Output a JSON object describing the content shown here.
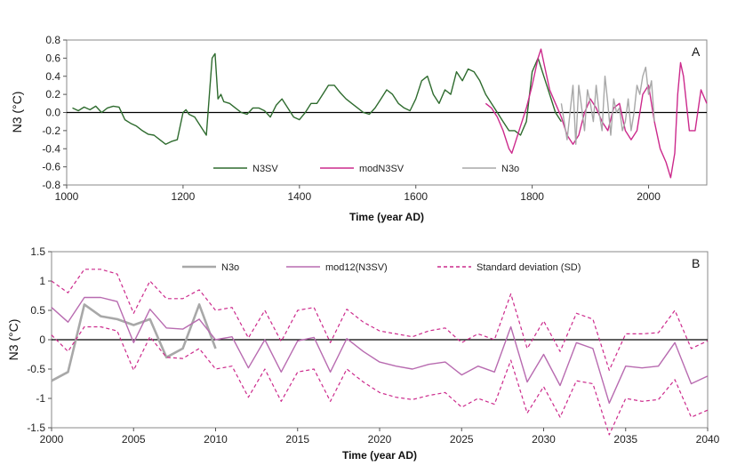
{
  "colors": {
    "n3sv": "#2e6b2e",
    "modn3sv": "#cc2a8c",
    "n3o": "#a8a8a8",
    "mod12": "#b86bb0",
    "sd": "#cc2a8c",
    "axis": "#000000",
    "frame": "#888888"
  },
  "chart_data": [
    {
      "type": "line",
      "panel_label": "A",
      "xlabel": "Time (year AD)",
      "ylabel": "N3 (°C)",
      "xlim": [
        1000,
        2100
      ],
      "ylim": [
        -0.8,
        0.8
      ],
      "xticks": [
        1000,
        1200,
        1400,
        1600,
        1800,
        2000
      ],
      "yticks": [
        -0.8,
        -0.6,
        -0.4,
        -0.2,
        0.0,
        0.2,
        0.4,
        0.6,
        0.8
      ],
      "ytick_labels": [
        "-0.8",
        "-0.6",
        "-0.4",
        "-0.2",
        "0.0",
        "0.2",
        "0.4",
        "0.6",
        "0.8"
      ],
      "zero_line": true,
      "legend_position": "bottom-center",
      "series": [
        {
          "name": "N3SV",
          "style": "solid",
          "x": [
            1010,
            1020,
            1030,
            1040,
            1050,
            1060,
            1070,
            1080,
            1090,
            1100,
            1110,
            1120,
            1130,
            1140,
            1150,
            1160,
            1170,
            1180,
            1190,
            1200,
            1205,
            1210,
            1220,
            1230,
            1240,
            1250,
            1255,
            1260,
            1265,
            1270,
            1280,
            1290,
            1300,
            1310,
            1320,
            1330,
            1340,
            1350,
            1360,
            1370,
            1380,
            1390,
            1400,
            1410,
            1420,
            1430,
            1440,
            1450,
            1460,
            1470,
            1480,
            1490,
            1500,
            1510,
            1520,
            1530,
            1540,
            1550,
            1560,
            1570,
            1580,
            1590,
            1600,
            1610,
            1620,
            1630,
            1640,
            1650,
            1660,
            1670,
            1680,
            1690,
            1700,
            1710,
            1720,
            1730,
            1740,
            1750,
            1760,
            1770,
            1780,
            1790,
            1800,
            1810,
            1820,
            1830,
            1840,
            1850
          ],
          "y": [
            0.05,
            0.02,
            0.06,
            0.03,
            0.07,
            0.0,
            0.05,
            0.07,
            0.06,
            -0.08,
            -0.12,
            -0.15,
            -0.2,
            -0.24,
            -0.25,
            -0.3,
            -0.35,
            -0.32,
            -0.3,
            0.0,
            0.03,
            -0.02,
            -0.05,
            -0.15,
            -0.25,
            0.6,
            0.65,
            0.15,
            0.2,
            0.12,
            0.1,
            0.05,
            0.0,
            -0.02,
            0.05,
            0.05,
            0.02,
            -0.05,
            0.08,
            0.15,
            0.05,
            -0.05,
            -0.08,
            0.0,
            0.1,
            0.1,
            0.2,
            0.3,
            0.3,
            0.22,
            0.15,
            0.1,
            0.05,
            0.0,
            -0.02,
            0.05,
            0.15,
            0.25,
            0.2,
            0.1,
            0.05,
            0.02,
            0.15,
            0.35,
            0.4,
            0.2,
            0.1,
            0.25,
            0.2,
            0.45,
            0.35,
            0.48,
            0.45,
            0.35,
            0.2,
            0.1,
            0.0,
            -0.1,
            -0.2,
            -0.2,
            -0.25,
            -0.1,
            0.45,
            0.6,
            0.4,
            0.2,
            0.0,
            -0.1
          ]
        },
        {
          "name": "modN3SV",
          "style": "solid",
          "x": [
            1720,
            1730,
            1740,
            1750,
            1760,
            1765,
            1770,
            1780,
            1790,
            1800,
            1810,
            1815,
            1820,
            1830,
            1840,
            1850,
            1860,
            1870,
            1880,
            1890,
            1900,
            1910,
            1920,
            1930,
            1940,
            1950,
            1960,
            1970,
            1980,
            1990,
            2000,
            2010,
            2020,
            2030,
            2038,
            2045,
            2050,
            2055,
            2060,
            2070,
            2080,
            2090,
            2100
          ],
          "y": [
            0.1,
            0.05,
            -0.05,
            -0.2,
            -0.4,
            -0.45,
            -0.35,
            -0.15,
            0.05,
            0.3,
            0.6,
            0.7,
            0.55,
            0.25,
            0.1,
            -0.05,
            -0.25,
            -0.35,
            -0.25,
            0.0,
            0.15,
            0.05,
            -0.1,
            -0.2,
            0.05,
            0.1,
            -0.2,
            -0.3,
            -0.2,
            0.2,
            0.3,
            -0.1,
            -0.4,
            -0.55,
            -0.72,
            -0.45,
            0.2,
            0.55,
            0.4,
            -0.2,
            -0.2,
            0.25,
            0.1
          ]
        },
        {
          "name": "N3o",
          "style": "solid",
          "x": [
            1850,
            1855,
            1860,
            1865,
            1870,
            1875,
            1880,
            1885,
            1890,
            1895,
            1900,
            1905,
            1910,
            1915,
            1920,
            1925,
            1930,
            1935,
            1940,
            1945,
            1950,
            1955,
            1960,
            1965,
            1970,
            1975,
            1980,
            1985,
            1990,
            1995,
            2000,
            2005,
            2010
          ],
          "y": [
            0.1,
            -0.1,
            -0.3,
            0.0,
            0.3,
            -0.35,
            0.3,
            0.05,
            -0.2,
            0.25,
            0.1,
            -0.1,
            0.3,
            0.0,
            -0.2,
            0.4,
            0.1,
            -0.25,
            0.15,
            0.0,
            0.05,
            -0.2,
            -0.1,
            0.15,
            -0.2,
            0.0,
            0.3,
            0.2,
            0.4,
            0.5,
            0.2,
            0.35,
            -0.1
          ]
        }
      ]
    },
    {
      "type": "line",
      "panel_label": "B",
      "xlabel": "Time (year AD)",
      "ylabel": "N3 (°C)",
      "xlim": [
        2000,
        2040
      ],
      "ylim": [
        -1.5,
        1.5
      ],
      "xticks": [
        2000,
        2005,
        2010,
        2015,
        2020,
        2025,
        2030,
        2035,
        2040
      ],
      "yticks": [
        -1.5,
        -1,
        -0.5,
        0,
        0.5,
        1,
        1.5
      ],
      "ytick_labels": [
        "-1.5",
        "-1",
        "-0.5",
        "0",
        "0.5",
        "1",
        "1.5"
      ],
      "zero_line": true,
      "legend_position": "top",
      "series": [
        {
          "name": "N3o",
          "style": "solid-thick",
          "x": [
            2000,
            2001,
            2002,
            2003,
            2004,
            2005,
            2006,
            2007,
            2008,
            2009,
            2010
          ],
          "y": [
            -0.7,
            -0.55,
            0.6,
            0.4,
            0.35,
            0.25,
            0.35,
            -0.3,
            -0.15,
            0.6,
            -0.15
          ]
        },
        {
          "name": "mod12(N3SV)",
          "style": "solid",
          "x": [
            2000,
            2001,
            2002,
            2003,
            2004,
            2005,
            2006,
            2007,
            2008,
            2009,
            2010,
            2011,
            2012,
            2013,
            2014,
            2015,
            2016,
            2017,
            2018,
            2019,
            2020,
            2021,
            2022,
            2023,
            2024,
            2025,
            2026,
            2027,
            2028,
            2029,
            2030,
            2031,
            2032,
            2033,
            2034,
            2035,
            2036,
            2037,
            2038,
            2039,
            2040
          ],
          "y": [
            0.55,
            0.3,
            0.72,
            0.72,
            0.65,
            -0.05,
            0.52,
            0.2,
            0.18,
            0.35,
            0.0,
            0.05,
            -0.48,
            0.0,
            -0.55,
            -0.02,
            0.04,
            -0.55,
            0.02,
            -0.2,
            -0.38,
            -0.45,
            -0.5,
            -0.42,
            -0.38,
            -0.6,
            -0.45,
            -0.55,
            0.22,
            -0.72,
            -0.25,
            -0.78,
            -0.05,
            -0.15,
            -1.08,
            -0.45,
            -0.48,
            -0.45,
            -0.05,
            -0.75,
            -0.62
          ]
        },
        {
          "name": "Standard deviation (SD)",
          "style": "dashed",
          "x": [
            2000,
            2001,
            2002,
            2003,
            2004,
            2005,
            2006,
            2007,
            2008,
            2009,
            2010,
            2011,
            2012,
            2013,
            2014,
            2015,
            2016,
            2017,
            2018,
            2019,
            2020,
            2021,
            2022,
            2023,
            2024,
            2025,
            2026,
            2027,
            2028,
            2029,
            2030,
            2031,
            2032,
            2033,
            2034,
            2035,
            2036,
            2037,
            2038,
            2039,
            2040
          ],
          "y": [
            1.0,
            0.8,
            1.2,
            1.2,
            1.12,
            0.45,
            1.0,
            0.7,
            0.7,
            0.85,
            0.5,
            0.55,
            0.03,
            0.5,
            -0.03,
            0.5,
            0.55,
            -0.05,
            0.52,
            0.3,
            0.15,
            0.1,
            0.05,
            0.15,
            0.2,
            -0.05,
            0.1,
            0.0,
            0.78,
            -0.15,
            0.32,
            -0.2,
            0.45,
            0.35,
            -0.52,
            0.1,
            0.1,
            0.12,
            0.5,
            -0.15,
            -0.02
          ]
        },
        {
          "name": "Standard deviation (SD)",
          "style": "dashed",
          "legend": false,
          "x": [
            2000,
            2001,
            2002,
            2003,
            2004,
            2005,
            2006,
            2007,
            2008,
            2009,
            2010,
            2011,
            2012,
            2013,
            2014,
            2015,
            2016,
            2017,
            2018,
            2019,
            2020,
            2021,
            2022,
            2023,
            2024,
            2025,
            2026,
            2027,
            2028,
            2029,
            2030,
            2031,
            2032,
            2033,
            2034,
            2035,
            2036,
            2037,
            2038,
            2039,
            2040
          ],
          "y": [
            0.08,
            -0.2,
            0.22,
            0.22,
            0.15,
            -0.52,
            0.05,
            -0.3,
            -0.32,
            -0.15,
            -0.5,
            -0.45,
            -0.98,
            -0.5,
            -1.05,
            -0.55,
            -0.5,
            -1.05,
            -0.5,
            -0.72,
            -0.9,
            -0.98,
            -1.02,
            -0.95,
            -0.9,
            -1.15,
            -1.0,
            -1.1,
            -0.35,
            -1.25,
            -0.8,
            -1.32,
            -0.7,
            -0.75,
            -1.62,
            -1.0,
            -1.05,
            -1.02,
            -0.68,
            -1.32,
            -1.2
          ]
        }
      ]
    }
  ]
}
